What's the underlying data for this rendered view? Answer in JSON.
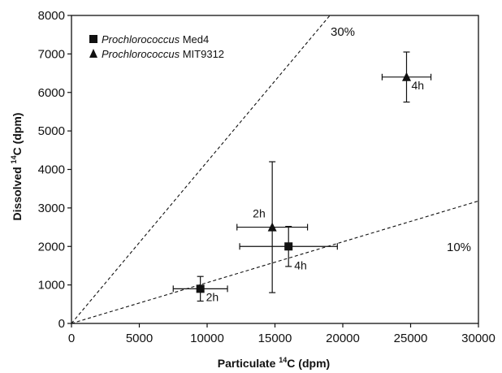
{
  "chart_data": {
    "type": "scatter",
    "xlabel": {
      "main": "Particulate ",
      "sup": "14",
      "rest": "C (dpm)"
    },
    "ylabel": {
      "main": "Dissolved ",
      "sup": "14",
      "rest": "C (dpm)"
    },
    "xlim": [
      0,
      30000
    ],
    "ylim": [
      0,
      8000
    ],
    "xticks": [
      0,
      5000,
      10000,
      15000,
      20000,
      25000,
      30000
    ],
    "yticks": [
      0,
      1000,
      2000,
      3000,
      4000,
      5000,
      6000,
      7000,
      8000
    ],
    "xtick_labels": [
      "0",
      "5000",
      "10000",
      "15000",
      "20000",
      "25000",
      "30000"
    ],
    "ytick_labels": [
      "0",
      "1000",
      "2000",
      "3000",
      "4000",
      "5000",
      "6000",
      "7000",
      "8000"
    ],
    "grid": false,
    "legend_position": "top-left",
    "series": [
      {
        "name_italic": "Prochlorococcus",
        "name_rest": " Med4",
        "marker": "square",
        "points": [
          {
            "x": 9500,
            "y": 900,
            "xerr": 2000,
            "yerr": 320,
            "label": "2h"
          },
          {
            "x": 16000,
            "y": 2000,
            "xerr": 3600,
            "yerr": 520,
            "label": "4h"
          }
        ]
      },
      {
        "name_italic": "Prochlorococcus",
        "name_rest": " MIT9312",
        "marker": "triangle",
        "points": [
          {
            "x": 14800,
            "y": 2500,
            "xerr": 2600,
            "yerr": 1700,
            "label": "2h"
          },
          {
            "x": 24700,
            "y": 6400,
            "xerr": 1800,
            "yerr": 650,
            "label": "4h"
          }
        ]
      }
    ],
    "reference_lines": [
      {
        "label": "30%",
        "slope": 0.42
      },
      {
        "label": "10%",
        "slope": 0.106
      }
    ]
  }
}
